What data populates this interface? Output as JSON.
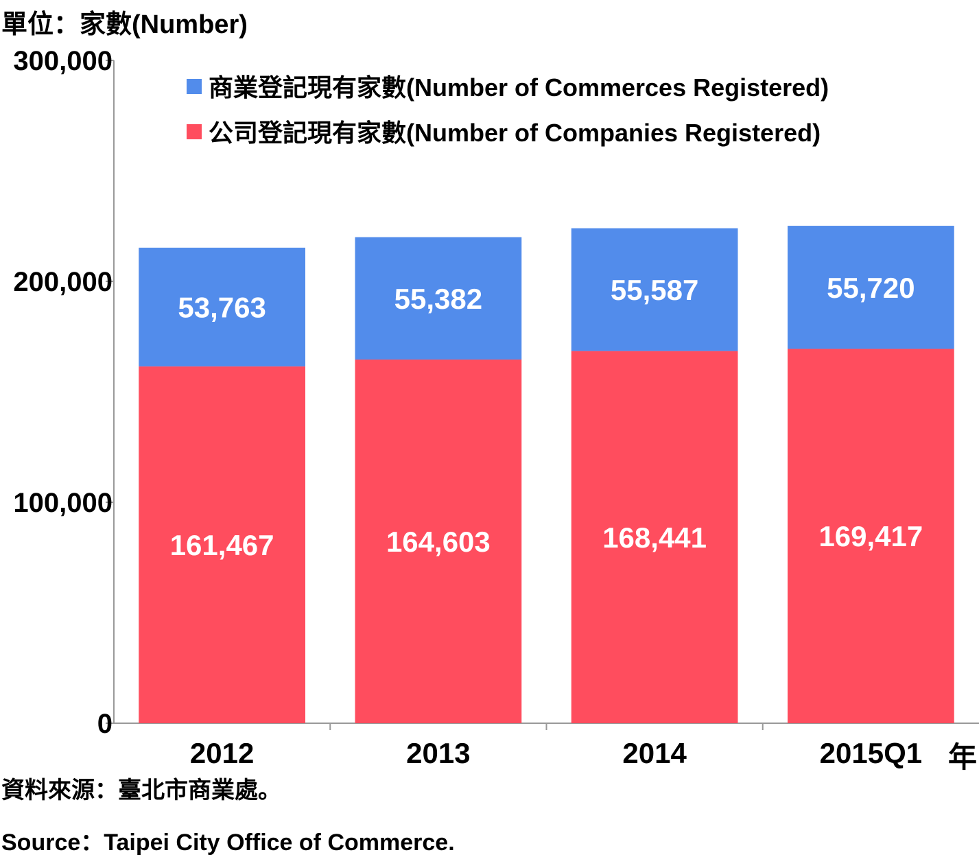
{
  "unit_label": "單位：家數(Number)",
  "x_suffix": "年",
  "source_zh": "資料來源：臺北市商業處。",
  "source_en": "Source：Taipei City Office of Commerce.",
  "colors": {
    "commerce": "#528CEB",
    "company": "#FF4D5E",
    "axis": "#999999",
    "data_label": "#ffffff"
  },
  "chart_data": {
    "type": "bar",
    "stacked": true,
    "categories": [
      "2012",
      "2013",
      "2014",
      "2015Q1"
    ],
    "series": [
      {
        "key": "company",
        "name": "公司登記現有家數(Number of Companies Registered)",
        "values": [
          161467,
          164603,
          168441,
          169417
        ],
        "value_labels": [
          "161,467",
          "164,603",
          "168,441",
          "169,417"
        ]
      },
      {
        "key": "commerce",
        "name": "商業登記現有家數(Number of Commerces Registered)",
        "values": [
          53763,
          55382,
          55587,
          55720
        ],
        "value_labels": [
          "53,763",
          "55,382",
          "55,587",
          "55,720"
        ]
      }
    ],
    "legend_order": [
      "commerce",
      "company"
    ],
    "ylim": [
      0,
      300000
    ],
    "y_ticks": [
      0,
      100000,
      200000,
      300000
    ],
    "y_tick_labels": [
      "0",
      "100,000",
      "200,000",
      "300,000"
    ],
    "legend_position": "top-right",
    "grid": false
  }
}
